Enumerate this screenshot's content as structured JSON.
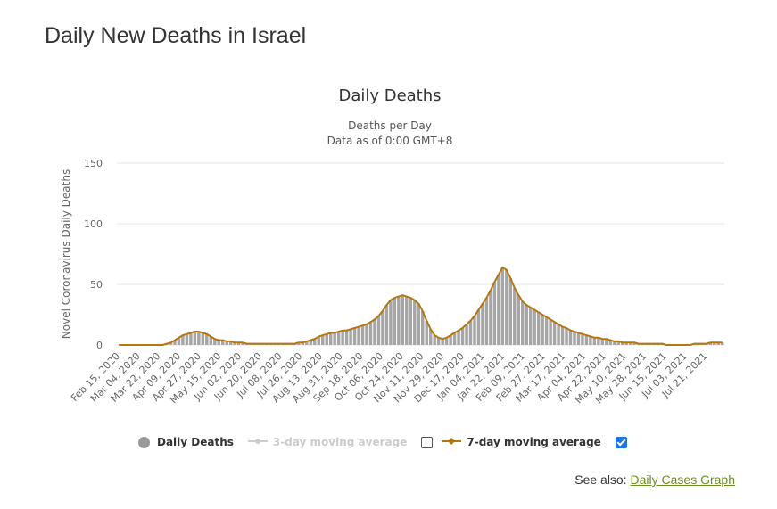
{
  "page": {
    "title": "Daily New Deaths in Israel",
    "see_also_label": "See also:",
    "see_also_link": "Daily Cases Graph"
  },
  "legend": {
    "daily": "Daily Deaths",
    "ma3": "3-day moving average",
    "ma7": "7-day moving average"
  },
  "colors": {
    "bars": "#a6a6a6",
    "ma7": "#b5770d",
    "grid": "#e6e6e6",
    "link": "#6b8e23",
    "checkbox": "#1a73e8"
  },
  "chart_data": {
    "type": "bar",
    "title": "Daily Deaths",
    "subtitle": [
      "Deaths per Day",
      "Data as of 0:00 GMT+8"
    ],
    "ylabel": "Novel Coronavirus Daily Deaths",
    "xlabel": "",
    "ylim": [
      0,
      150
    ],
    "yticks": [
      0,
      50,
      100,
      150
    ],
    "grid": true,
    "legend_position": "bottom",
    "x_tick_labels": [
      "Feb 15, 2020",
      "Mar 04, 2020",
      "Mar 22, 2020",
      "Apr 09, 2020",
      "Apr 27, 2020",
      "May 15, 2020",
      "Jun 02, 2020",
      "Jun 20, 2020",
      "Jul 08, 2020",
      "Jul 26, 2020",
      "Aug 13, 2020",
      "Aug 31, 2020",
      "Sep 18, 2020",
      "Oct 06, 2020",
      "Oct 24, 2020",
      "Nov 11, 2020",
      "Nov 29, 2020",
      "Dec 17, 2020",
      "Jan 04, 2021",
      "Jan 22, 2021",
      "Feb 09, 2021",
      "Feb 27, 2021",
      "Mar 17, 2021",
      "Apr 04, 2021",
      "Apr 22, 2021",
      "May 10, 2021",
      "May 28, 2021",
      "Jun 15, 2021",
      "Jul 03, 2021",
      "Jul 21, 2021"
    ],
    "first_date": "Feb 15, 2020",
    "series": [
      {
        "name": "Daily Deaths",
        "step_days": 3,
        "values": [
          0,
          0,
          0,
          0,
          0,
          0,
          0,
          0,
          0,
          0,
          0,
          0,
          1,
          2,
          4,
          6,
          8,
          9,
          10,
          11,
          11,
          10,
          9,
          7,
          5,
          4,
          4,
          3,
          3,
          2,
          2,
          2,
          1,
          1,
          1,
          1,
          1,
          1,
          1,
          1,
          1,
          1,
          1,
          1,
          1,
          2,
          2,
          3,
          4,
          5,
          7,
          8,
          9,
          10,
          10,
          11,
          12,
          12,
          13,
          14,
          15,
          16,
          17,
          19,
          21,
          24,
          28,
          33,
          37,
          39,
          40,
          41,
          40,
          39,
          37,
          34,
          28,
          20,
          13,
          8,
          6,
          5,
          6,
          8,
          10,
          12,
          14,
          17,
          20,
          24,
          29,
          34,
          39,
          45,
          52,
          58,
          64,
          62,
          55,
          47,
          41,
          36,
          33,
          31,
          29,
          27,
          25,
          23,
          21,
          19,
          17,
          15,
          14,
          12,
          11,
          10,
          9,
          8,
          7,
          6,
          6,
          5,
          5,
          4,
          3,
          3,
          2,
          2,
          2,
          2,
          1,
          1,
          1,
          1,
          1,
          1,
          1,
          0,
          0,
          0,
          0,
          0,
          0,
          0,
          1,
          1,
          1,
          1,
          2,
          2,
          2,
          2
        ]
      },
      {
        "name": "7-day moving average",
        "step_days": 3,
        "values": [
          0,
          0,
          0,
          0,
          0,
          0,
          0,
          0,
          0,
          0,
          0,
          0,
          1,
          2,
          4,
          6,
          8,
          9,
          10,
          11,
          11,
          10,
          9,
          7,
          5,
          4,
          4,
          3,
          3,
          2,
          2,
          2,
          1,
          1,
          1,
          1,
          1,
          1,
          1,
          1,
          1,
          1,
          1,
          1,
          1,
          2,
          2,
          3,
          4,
          5,
          7,
          8,
          9,
          10,
          10,
          11,
          12,
          12,
          13,
          14,
          15,
          16,
          17,
          19,
          21,
          24,
          28,
          33,
          37,
          39,
          40,
          41,
          40,
          39,
          37,
          34,
          28,
          20,
          13,
          8,
          6,
          5,
          6,
          8,
          10,
          12,
          14,
          17,
          20,
          24,
          29,
          34,
          39,
          45,
          52,
          58,
          64,
          62,
          55,
          47,
          41,
          36,
          33,
          31,
          29,
          27,
          25,
          23,
          21,
          19,
          17,
          15,
          14,
          12,
          11,
          10,
          9,
          8,
          7,
          6,
          6,
          5,
          5,
          4,
          3,
          3,
          2,
          2,
          2,
          2,
          1,
          1,
          1,
          1,
          1,
          1,
          1,
          0,
          0,
          0,
          0,
          0,
          0,
          0,
          1,
          1,
          1,
          1,
          2,
          2,
          2,
          2
        ]
      }
    ]
  }
}
